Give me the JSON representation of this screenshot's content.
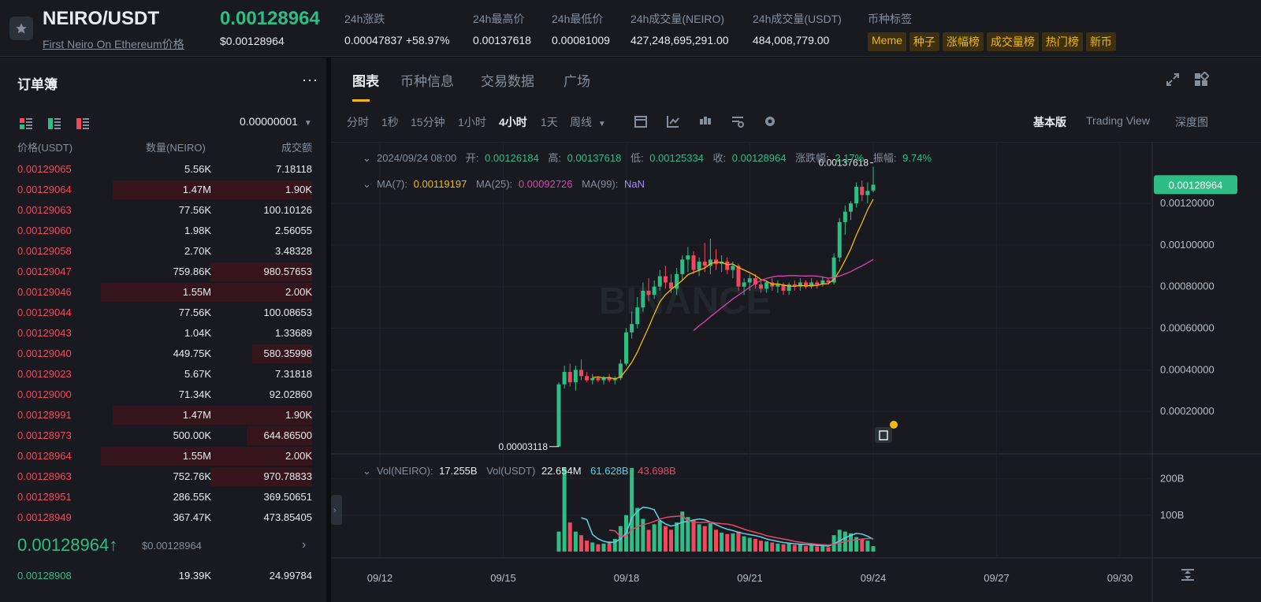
{
  "header": {
    "pair": "NEIRO/USDT",
    "subtitle": "First Neiro On Ethereum价格",
    "last_price": "0.00128964",
    "last_price_usd": "$0.00128964",
    "stats": [
      {
        "label": "24h涨跌",
        "value": "0.00047837 +58.97%",
        "color": "#2ebd85"
      },
      {
        "label": "24h最高价",
        "value": "0.00137618"
      },
      {
        "label": "24h最低价",
        "value": "0.00081009"
      },
      {
        "label": "24h成交量(NEIRO)",
        "value": "427,248,695,291.00"
      },
      {
        "label": "24h成交量(USDT)",
        "value": "484,008,779.00"
      }
    ],
    "tags_label": "币种标签",
    "tags": [
      "Meme",
      "种子",
      "涨幅榜",
      "成交量榜",
      "热门榜",
      "新币"
    ]
  },
  "orderbook": {
    "title": "订单簿",
    "more": "···",
    "precision": "0.00000001",
    "columns": [
      "价格(USDT)",
      "数量(NEIRO)",
      "成交额"
    ],
    "asks": [
      {
        "price": "0.00129065",
        "qty": "5.56K",
        "total": "7.18118",
        "depth": 0
      },
      {
        "price": "0.00129064",
        "qty": "1.47M",
        "total": "1.90K",
        "depth": 0.67
      },
      {
        "price": "0.00129063",
        "qty": "77.56K",
        "total": "100.10126",
        "depth": 0
      },
      {
        "price": "0.00129060",
        "qty": "1.98K",
        "total": "2.56055",
        "depth": 0
      },
      {
        "price": "0.00129058",
        "qty": "2.70K",
        "total": "3.48328",
        "depth": 0
      },
      {
        "price": "0.00129047",
        "qty": "759.86K",
        "total": "980.57653",
        "depth": 0.34
      },
      {
        "price": "0.00129046",
        "qty": "1.55M",
        "total": "2.00K",
        "depth": 0.71
      },
      {
        "price": "0.00129044",
        "qty": "77.56K",
        "total": "100.08653",
        "depth": 0
      },
      {
        "price": "0.00129043",
        "qty": "1.04K",
        "total": "1.33689",
        "depth": 0
      },
      {
        "price": "0.00129040",
        "qty": "449.75K",
        "total": "580.35998",
        "depth": 0.2
      },
      {
        "price": "0.00129023",
        "qty": "5.67K",
        "total": "7.31818",
        "depth": 0
      },
      {
        "price": "0.00129000",
        "qty": "71.34K",
        "total": "92.02860",
        "depth": 0
      },
      {
        "price": "0.00128991",
        "qty": "1.47M",
        "total": "1.90K",
        "depth": 0.67
      },
      {
        "price": "0.00128973",
        "qty": "500.00K",
        "total": "644.86500",
        "depth": 0.22
      },
      {
        "price": "0.00128964",
        "qty": "1.55M",
        "total": "2.00K",
        "depth": 0.71
      },
      {
        "price": "0.00128963",
        "qty": "752.76K",
        "total": "970.78833",
        "depth": 0.34
      },
      {
        "price": "0.00128951",
        "qty": "286.55K",
        "total": "369.50651",
        "depth": 0
      },
      {
        "price": "0.00128949",
        "qty": "367.47K",
        "total": "473.85405",
        "depth": 0
      }
    ],
    "mid_price": "0.00128964",
    "mid_arrow": "↑",
    "mid_usd": "$0.00128964",
    "bids": [
      {
        "price": "0.00128908",
        "qty": "19.39K",
        "total": "24.99784"
      }
    ]
  },
  "chart_panel": {
    "tabs": [
      "图表",
      "币种信息",
      "交易数据",
      "广场"
    ],
    "intervals": [
      "分时",
      "1秒",
      "15分钟",
      "1小时",
      "4小时",
      "1天",
      "周线"
    ],
    "active_interval": "4小时",
    "views": [
      "基本版",
      "Trading View",
      "深度图"
    ],
    "active_view": "基本版",
    "ohlc": {
      "date": "2024/09/24 08:00",
      "open_label": "开:",
      "open": "0.00126184",
      "high_label": "高:",
      "high": "0.00137618",
      "low_label": "低:",
      "low": "0.00125334",
      "close_label": "收:",
      "close": "0.00128964",
      "change_label": "涨跌幅:",
      "change": "2.17%",
      "amp_label": "振幅:",
      "amp": "9.74%"
    },
    "ma": {
      "ma7_label": "MA(7):",
      "ma7": "0.00119197",
      "ma25_label": "MA(25):",
      "ma25": "0.00092726",
      "ma99_label": "MA(99):",
      "ma99": "NaN"
    },
    "vol": {
      "neiro_label": "Vol(NEIRO):",
      "neiro": "17.255B",
      "usdt_label": "Vol(USDT)",
      "usdt": "22.654M",
      "ma1": "61.628B",
      "ma2": "43.698B"
    },
    "max_label": "0.00137618",
    "min_label": "0.00003118",
    "watermark": "BINANCE",
    "colors": {
      "up": "#2ebd85",
      "down": "#f6465d",
      "ma7": "#f0b90b",
      "ma25": "#d946b0",
      "vol_ma1": "#5fd0e8",
      "vol_ma2": "#e8466a"
    }
  },
  "chart_data": {
    "type": "candlestick",
    "y_axis": {
      "ticks": [
        0.0012,
        0.001,
        0.0008,
        0.0006,
        0.0004,
        0.0002
      ],
      "ylim": [
        0,
        0.00142
      ],
      "current": 0.00128964
    },
    "x_axis": {
      "ticks": [
        "09/12",
        "09/15",
        "09/18",
        "09/21",
        "09/24",
        "09/27",
        "09/30"
      ]
    },
    "vol_axis": {
      "ticks": [
        "200B",
        "100B"
      ]
    },
    "candles": [
      {
        "o": 3.118e-05,
        "h": 0.00034,
        "l": 3.118e-05,
        "c": 0.00033,
        "v": 55
      },
      {
        "o": 0.00033,
        "h": 0.00042,
        "l": 0.00031,
        "c": 0.00039,
        "v": 230
      },
      {
        "o": 0.00039,
        "h": 0.00043,
        "l": 0.00032,
        "c": 0.00034,
        "v": 80
      },
      {
        "o": 0.00034,
        "h": 0.00042,
        "l": 0.0003,
        "c": 0.0004,
        "v": 55
      },
      {
        "o": 0.0004,
        "h": 0.00045,
        "l": 0.00035,
        "c": 0.00037,
        "v": 45
      },
      {
        "o": 0.00037,
        "h": 0.00039,
        "l": 0.00034,
        "c": 0.00035,
        "v": 30
      },
      {
        "o": 0.00035,
        "h": 0.00038,
        "l": 0.00033,
        "c": 0.00036,
        "v": 25
      },
      {
        "o": 0.00036,
        "h": 0.00037,
        "l": 0.00034,
        "c": 0.00035,
        "v": 20
      },
      {
        "o": 0.00035,
        "h": 0.00037,
        "l": 0.00033,
        "c": 0.00036,
        "v": 22
      },
      {
        "o": 0.00036,
        "h": 0.00038,
        "l": 0.00034,
        "c": 0.00035,
        "v": 28
      },
      {
        "o": 0.00035,
        "h": 0.00037,
        "l": 0.00033,
        "c": 0.00036,
        "v": 35
      },
      {
        "o": 0.00036,
        "h": 0.00045,
        "l": 0.00035,
        "c": 0.00043,
        "v": 70
      },
      {
        "o": 0.00043,
        "h": 0.0006,
        "l": 0.00042,
        "c": 0.00058,
        "v": 100
      },
      {
        "o": 0.00058,
        "h": 0.00068,
        "l": 0.00055,
        "c": 0.00062,
        "v": 230
      },
      {
        "o": 0.00062,
        "h": 0.00075,
        "l": 0.0006,
        "c": 0.0007,
        "v": 120
      },
      {
        "o": 0.0007,
        "h": 0.00082,
        "l": 0.00068,
        "c": 0.00078,
        "v": 90
      },
      {
        "o": 0.00078,
        "h": 0.00084,
        "l": 0.00073,
        "c": 0.00076,
        "v": 60
      },
      {
        "o": 0.00076,
        "h": 0.00083,
        "l": 0.00074,
        "c": 0.0008,
        "v": 75
      },
      {
        "o": 0.0008,
        "h": 0.00088,
        "l": 0.00078,
        "c": 0.00085,
        "v": 85
      },
      {
        "o": 0.00085,
        "h": 0.0009,
        "l": 0.00079,
        "c": 0.00082,
        "v": 70
      },
      {
        "o": 0.00082,
        "h": 0.00086,
        "l": 0.00077,
        "c": 0.00079,
        "v": 60
      },
      {
        "o": 0.00079,
        "h": 0.00089,
        "l": 0.00076,
        "c": 0.00086,
        "v": 80
      },
      {
        "o": 0.00086,
        "h": 0.00095,
        "l": 0.00083,
        "c": 0.00093,
        "v": 110
      },
      {
        "o": 0.00093,
        "h": 0.00099,
        "l": 0.00087,
        "c": 0.00095,
        "v": 95
      },
      {
        "o": 0.00095,
        "h": 0.00097,
        "l": 0.00086,
        "c": 0.00088,
        "v": 88
      },
      {
        "o": 0.00088,
        "h": 0.00094,
        "l": 0.00085,
        "c": 0.00092,
        "v": 75
      },
      {
        "o": 0.00092,
        "h": 0.00101,
        "l": 0.00087,
        "c": 0.0009,
        "v": 70
      },
      {
        "o": 0.0009,
        "h": 0.00103,
        "l": 0.00086,
        "c": 0.00093,
        "v": 78
      },
      {
        "o": 0.00093,
        "h": 0.00098,
        "l": 0.00088,
        "c": 0.00091,
        "v": 60
      },
      {
        "o": 0.00091,
        "h": 0.00095,
        "l": 0.00087,
        "c": 0.00092,
        "v": 52
      },
      {
        "o": 0.00092,
        "h": 0.00094,
        "l": 0.00086,
        "c": 0.00088,
        "v": 48
      },
      {
        "o": 0.00088,
        "h": 0.00092,
        "l": 0.00084,
        "c": 0.0009,
        "v": 50
      },
      {
        "o": 0.0009,
        "h": 0.00091,
        "l": 0.00078,
        "c": 0.0008,
        "v": 55
      },
      {
        "o": 0.0008,
        "h": 0.00084,
        "l": 0.00076,
        "c": 0.00082,
        "v": 42
      },
      {
        "o": 0.00082,
        "h": 0.00086,
        "l": 0.00078,
        "c": 0.00084,
        "v": 38
      },
      {
        "o": 0.00084,
        "h": 0.00086,
        "l": 0.00079,
        "c": 0.00081,
        "v": 35
      },
      {
        "o": 0.00081,
        "h": 0.00083,
        "l": 0.00077,
        "c": 0.00079,
        "v": 30
      },
      {
        "o": 0.00079,
        "h": 0.00083,
        "l": 0.00077,
        "c": 0.00082,
        "v": 28
      },
      {
        "o": 0.00082,
        "h": 0.00084,
        "l": 0.00078,
        "c": 0.0008,
        "v": 25
      },
      {
        "o": 0.0008,
        "h": 0.00083,
        "l": 0.00077,
        "c": 0.00081,
        "v": 22
      },
      {
        "o": 0.00081,
        "h": 0.00082,
        "l": 0.00076,
        "c": 0.00078,
        "v": 20
      },
      {
        "o": 0.00078,
        "h": 0.00082,
        "l": 0.00076,
        "c": 0.00081,
        "v": 22
      },
      {
        "o": 0.00081,
        "h": 0.00083,
        "l": 0.00078,
        "c": 0.0008,
        "v": 18
      },
      {
        "o": 0.0008,
        "h": 0.00084,
        "l": 0.00078,
        "c": 0.00082,
        "v": 20
      },
      {
        "o": 0.00082,
        "h": 0.00083,
        "l": 0.00079,
        "c": 0.0008,
        "v": 15
      },
      {
        "o": 0.0008,
        "h": 0.00084,
        "l": 0.00079,
        "c": 0.00082,
        "v": 18
      },
      {
        "o": 0.00082,
        "h": 0.00083,
        "l": 0.00079,
        "c": 0.00081,
        "v": 14
      },
      {
        "o": 0.00081,
        "h": 0.00085,
        "l": 0.0008,
        "c": 0.00083,
        "v": 16
      },
      {
        "o": 0.00083,
        "h": 0.00084,
        "l": 0.00081,
        "c": 0.00082,
        "v": 12
      },
      {
        "o": 0.00082,
        "h": 0.00096,
        "l": 0.00081,
        "c": 0.00094,
        "v": 45
      },
      {
        "o": 0.00094,
        "h": 0.00113,
        "l": 0.00092,
        "c": 0.00111,
        "v": 60
      },
      {
        "o": 0.00111,
        "h": 0.00119,
        "l": 0.00105,
        "c": 0.00116,
        "v": 55
      },
      {
        "o": 0.00116,
        "h": 0.00121,
        "l": 0.00112,
        "c": 0.0012,
        "v": 50
      },
      {
        "o": 0.0012,
        "h": 0.0013,
        "l": 0.00118,
        "c": 0.00128,
        "v": 40
      },
      {
        "o": 0.00128,
        "h": 0.00131,
        "l": 0.00121,
        "c": 0.00124,
        "v": 35
      },
      {
        "o": 0.00124,
        "h": 0.0013,
        "l": 0.0012,
        "c": 0.00126,
        "v": 30
      },
      {
        "o": 0.00126184,
        "h": 0.00137618,
        "l": 0.00125334,
        "c": 0.00128964,
        "v": 15
      }
    ]
  }
}
